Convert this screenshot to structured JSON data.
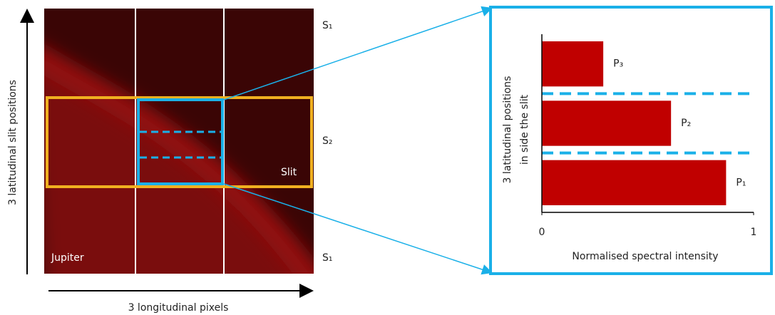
{
  "image": {
    "y_axis_label": "3 latitudinal slit positions",
    "x_axis_label": "3 longitudinal pixels",
    "planet_label": "Jupiter",
    "slit_label": "Slit",
    "slit_rows": [
      "S₁",
      "S₂",
      "S₁"
    ]
  },
  "chart_data": {
    "type": "bar",
    "orientation": "horizontal",
    "y_label": [
      "3 latitudinal positions",
      "in side the slit"
    ],
    "x_label": "Normalised spectral intensity",
    "categories": [
      "P₁",
      "P₂",
      "P₃"
    ],
    "values": [
      0.87,
      0.61,
      0.29
    ],
    "color": "#c00000",
    "xlim": [
      0,
      1
    ],
    "xticks": [
      0,
      1
    ]
  }
}
